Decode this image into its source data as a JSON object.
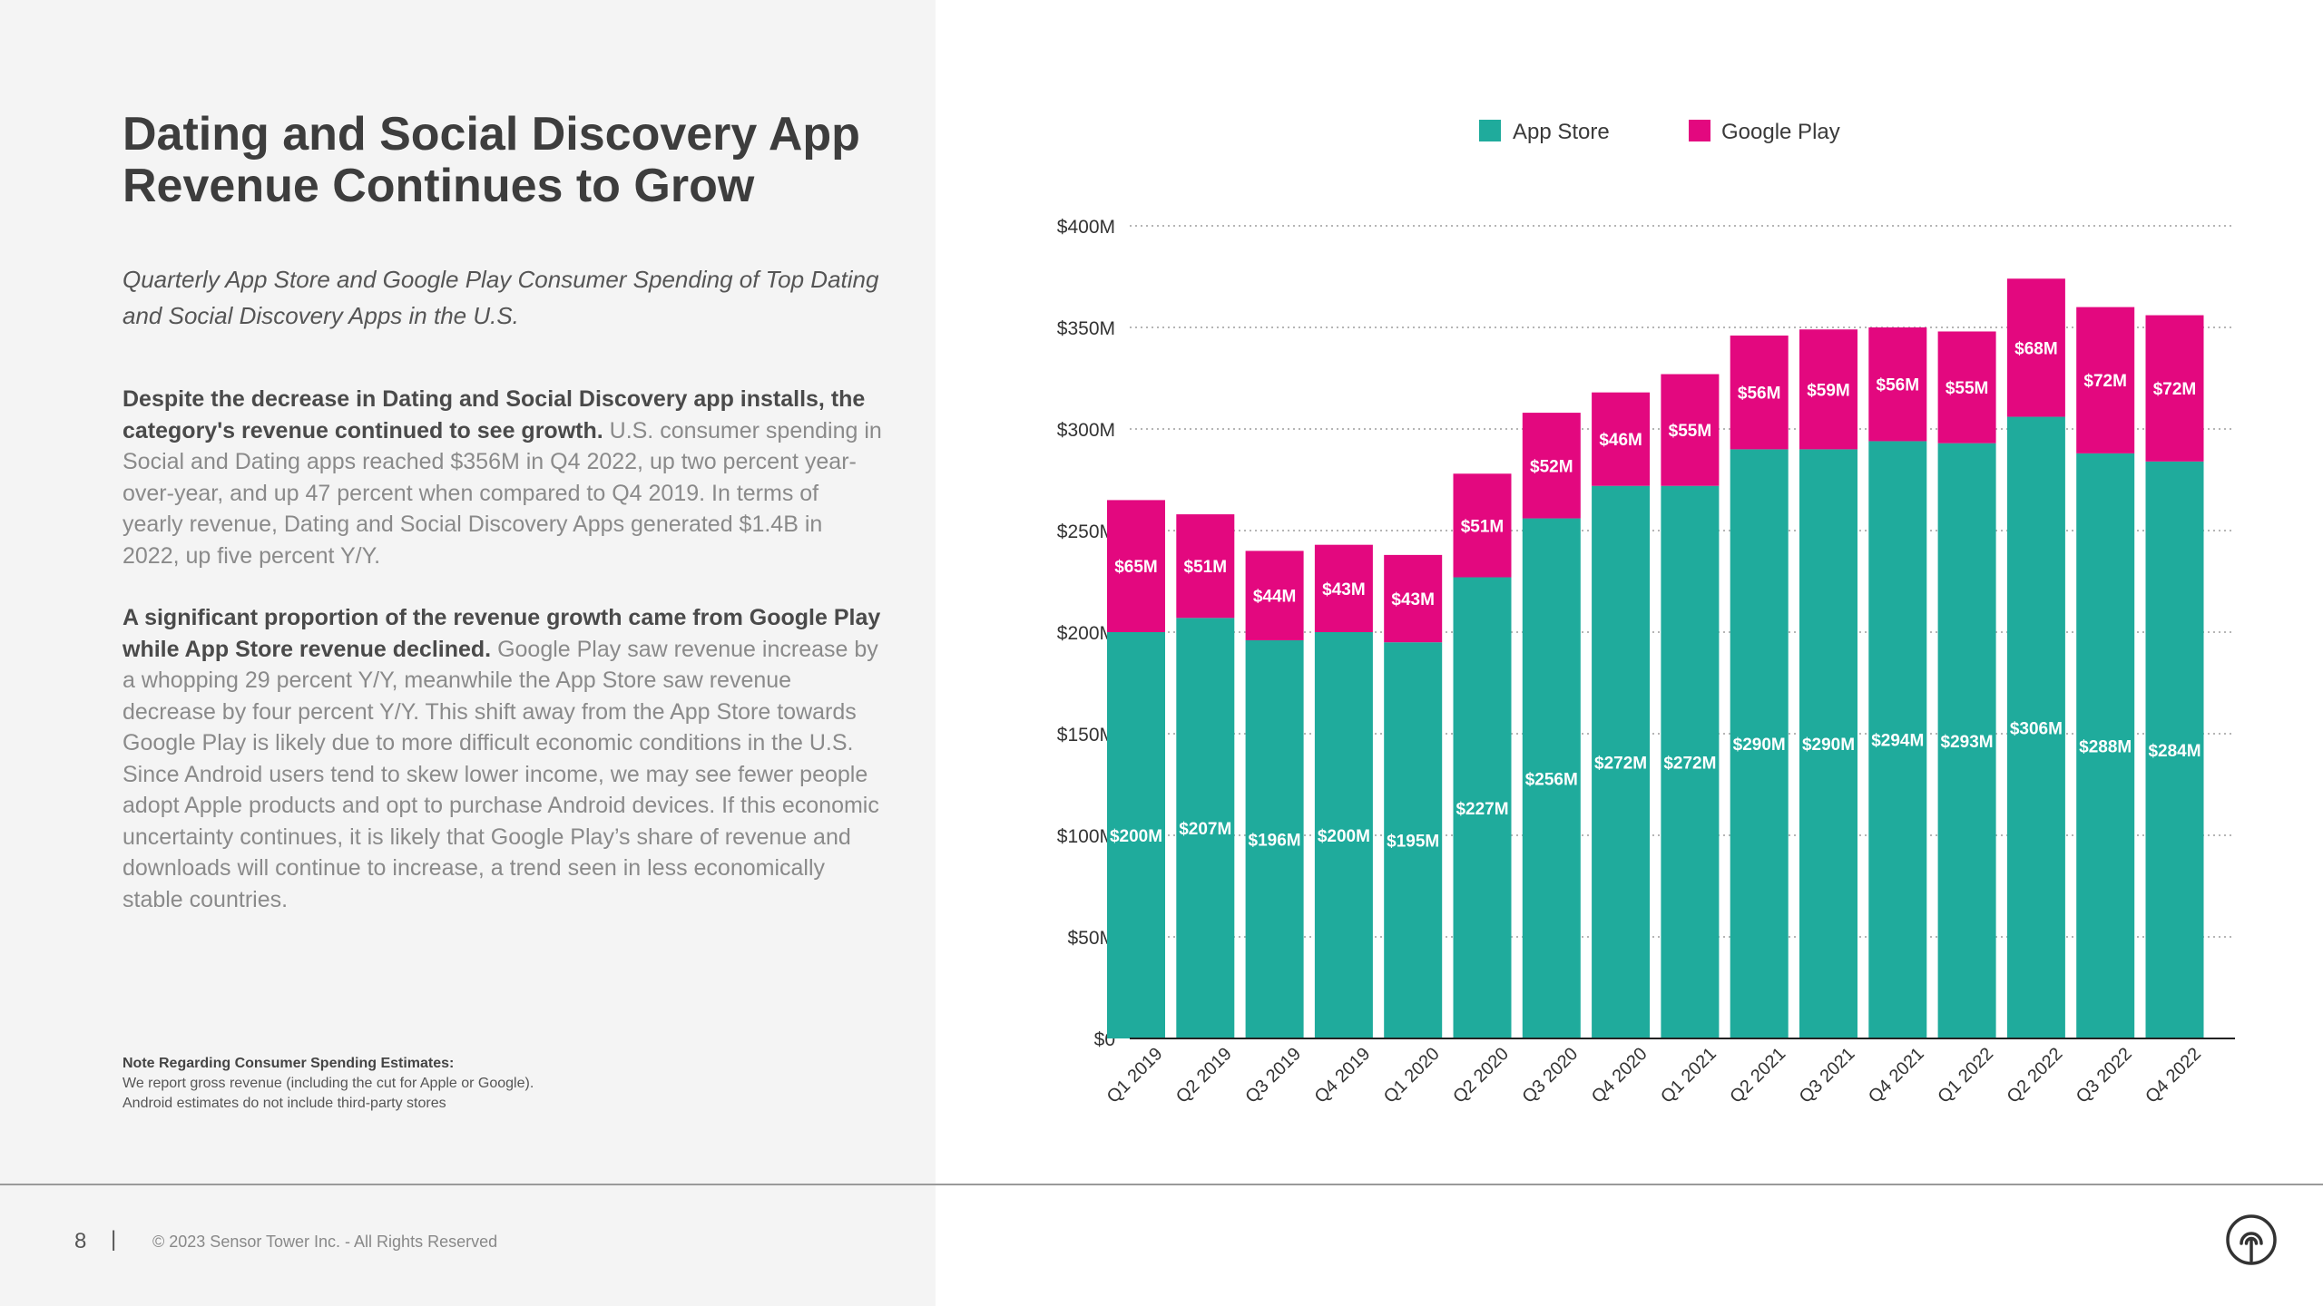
{
  "title": "Dating and Social Discovery App Revenue Continues to Grow",
  "subtitle": "Quarterly App Store and Google Play Consumer Spending of Top Dating and Social Discovery Apps in the U.S.",
  "paragraphs": [
    {
      "bold": "Despite the decrease in Dating and Social Discovery app installs, the category's revenue continued to see growth.",
      "text": " U.S. consumer spending in Social and Dating apps reached $356M in Q4 2022, up two percent year-over-year, and up 47 percent when compared to Q4 2019. In terms of yearly revenue, Dating and Social Discovery Apps generated $1.4B in 2022, up five percent Y/Y."
    },
    {
      "bold": "A significant proportion of the revenue growth came from Google Play while App Store revenue declined.",
      "text": " Google Play saw revenue increase by a whopping 29 percent Y/Y, meanwhile the App Store saw revenue decrease by four percent Y/Y. This shift away from the App Store towards Google Play is likely due to more difficult economic conditions in the U.S. Since Android users tend to skew lower income, we may see fewer people adopt Apple products and opt to purchase Android devices.  If this economic uncertainty continues, it is likely that Google Play’s share of revenue and downloads will continue to increase, a trend seen in less economically stable countries."
    }
  ],
  "note": {
    "title": "Note Regarding Consumer Spending Estimates:",
    "line1": "We report gross revenue (including the cut for Apple or Google).",
    "line2": "Android estimates do not include third-party stores"
  },
  "footer": {
    "page_number": "8",
    "separator": "|",
    "copyright": "© 2023 Sensor Tower Inc. - All Rights Reserved"
  },
  "logo": {
    "icon": "sensor-tower-logo-icon"
  },
  "colors": {
    "app_store": "#1fab9c",
    "google_play": "#e3087f",
    "panel_bg": "#f4f4f4"
  },
  "chart_data": {
    "type": "bar",
    "stacked": true,
    "categories": [
      "Q1 2019",
      "Q2 2019",
      "Q3 2019",
      "Q4 2019",
      "Q1 2020",
      "Q2 2020",
      "Q3 2020",
      "Q4 2020",
      "Q1 2021",
      "Q2 2021",
      "Q3 2021",
      "Q4 2021",
      "Q1 2022",
      "Q2 2022",
      "Q3 2022",
      "Q4 2022"
    ],
    "series": [
      {
        "name": "App Store",
        "color": "#1fab9c",
        "values": [
          200,
          207,
          196,
          200,
          195,
          227,
          256,
          272,
          272,
          290,
          290,
          294,
          293,
          306,
          288,
          284
        ],
        "labels": [
          "$200M",
          "$207M",
          "$196M",
          "$200M",
          "$195M",
          "$227M",
          "$256M",
          "$272M",
          "$272M",
          "$290M",
          "$290M",
          "$294M",
          "$293M",
          "$306M",
          "$288M",
          "$284M"
        ]
      },
      {
        "name": "Google Play",
        "color": "#e3087f",
        "values": [
          65,
          51,
          44,
          43,
          43,
          51,
          52,
          46,
          55,
          56,
          59,
          56,
          55,
          68,
          72,
          72
        ],
        "labels": [
          "$65M",
          "$51M",
          "$44M",
          "$43M",
          "$43M",
          "$51M",
          "$52M",
          "$46M",
          "$55M",
          "$56M",
          "$59M",
          "$56M",
          "$55M",
          "$68M",
          "$72M",
          "$72M"
        ]
      }
    ],
    "yticks": [
      0,
      50,
      100,
      150,
      200,
      250,
      300,
      350,
      400
    ],
    "ytick_labels": [
      "$0",
      "$50M",
      "$100M",
      "$150M",
      "$200M",
      "$250M",
      "$300M",
      "$350M",
      "$400M"
    ],
    "ylim": [
      0,
      400
    ],
    "unit": "USD millions",
    "grid": "dotted horizontal",
    "legend_position": "top"
  }
}
